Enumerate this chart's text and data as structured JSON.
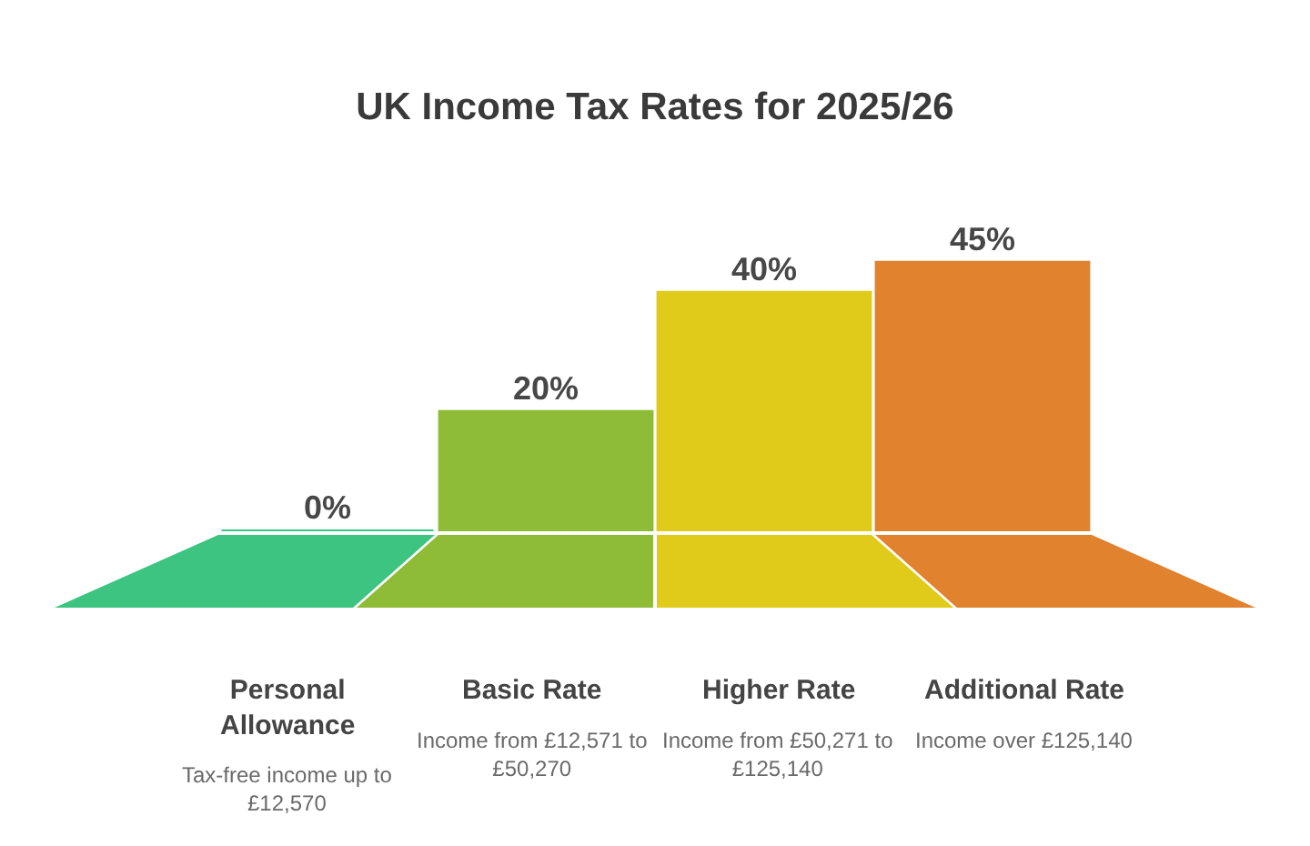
{
  "chart_data": {
    "type": "bar",
    "title": "UK Income Tax Rates for 2025/26",
    "categories": [
      "Personal Allowance",
      "Basic Rate",
      "Higher Rate",
      "Additional Rate"
    ],
    "values": [
      0,
      20,
      40,
      45
    ],
    "value_labels": [
      "0%",
      "20%",
      "40%",
      "45%"
    ],
    "colors": [
      "#3cc480",
      "#8fbc37",
      "#e0cb1a",
      "#e0822e"
    ],
    "tick_labels": "x",
    "annotations": [
      "Tax-free income up to £12,570",
      "Income from £12,571 to £50,270",
      "Income from £50,271 to £125,140",
      "Income over £125,140"
    ]
  }
}
